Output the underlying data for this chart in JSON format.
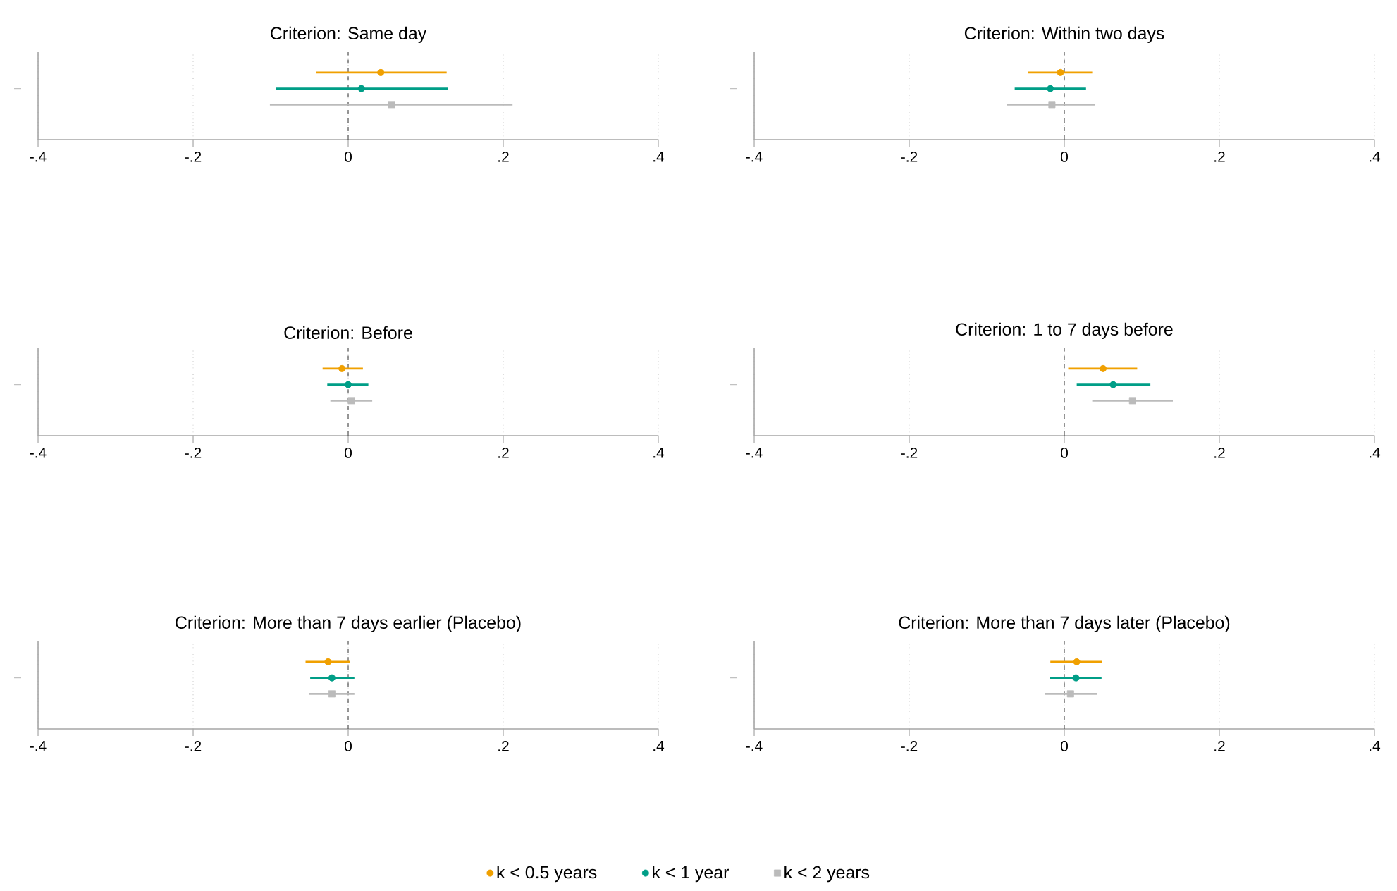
{
  "chart_data": [
    {
      "type": "scatter",
      "orientation": "horizontal",
      "title": "Criterion: Same day",
      "categories": [
        null
      ],
      "xlim": [
        -0.4,
        0.4
      ],
      "xticks": [
        {
          "value": -0.4,
          "label": "-.4"
        },
        {
          "value": -0.2,
          "label": "-.2"
        },
        0,
        {
          "value": 0.2,
          "label": ".2"
        },
        {
          "value": 0.4,
          "label": ".4"
        }
      ],
      "grid": "x",
      "tick_labels": "x",
      "ref_lines": [
        {
          "axis": "x",
          "value": 0,
          "color": "#555555",
          "line_style": "dashed"
        }
      ],
      "series": [
        {
          "color": "#f0a000",
          "marker": "circle",
          "values": [
            0.042
          ],
          "errors": [
            [
              -0.041,
              0.127
            ]
          ]
        },
        {
          "color": "#009e87",
          "marker": "circle",
          "values": [
            0.017
          ],
          "errors": [
            [
              -0.093,
              0.129
            ]
          ]
        },
        {
          "color": "#bbbbbb",
          "marker": "square",
          "values": [
            0.056
          ],
          "errors": [
            [
              -0.101,
              0.212
            ]
          ]
        }
      ]
    },
    {
      "type": "scatter",
      "orientation": "horizontal",
      "title": "Criterion: Within two days",
      "categories": [
        null
      ],
      "xlim": [
        -0.4,
        0.4
      ],
      "xticks": [
        {
          "value": -0.4,
          "label": "-.4"
        },
        {
          "value": -0.2,
          "label": "-.2"
        },
        0,
        {
          "value": 0.2,
          "label": ".2"
        },
        {
          "value": 0.4,
          "label": ".4"
        }
      ],
      "grid": "x",
      "tick_labels": "x",
      "ref_lines": [
        {
          "axis": "x",
          "value": 0,
          "color": "#555555",
          "line_style": "dashed"
        }
      ],
      "series": [
        {
          "color": "#f0a000",
          "marker": "circle",
          "values": [
            -0.005
          ],
          "errors": [
            [
              -0.047,
              0.036
            ]
          ]
        },
        {
          "color": "#009e87",
          "marker": "circle",
          "values": [
            -0.018
          ],
          "errors": [
            [
              -0.064,
              0.028
            ]
          ]
        },
        {
          "color": "#bbbbbb",
          "marker": "square",
          "values": [
            -0.016
          ],
          "errors": [
            [
              -0.074,
              0.04
            ]
          ]
        }
      ]
    },
    {
      "type": "scatter",
      "orientation": "horizontal",
      "title": "Criterion: Before",
      "categories": [
        null
      ],
      "xlim": [
        -0.4,
        0.4
      ],
      "xticks": [
        {
          "value": -0.4,
          "label": "-.4"
        },
        {
          "value": -0.2,
          "label": "-.2"
        },
        0,
        {
          "value": 0.2,
          "label": ".2"
        },
        {
          "value": 0.4,
          "label": ".4"
        }
      ],
      "grid": "x",
      "tick_labels": "x",
      "ref_lines": [
        {
          "axis": "x",
          "value": 0,
          "color": "#555555",
          "line_style": "dashed"
        }
      ],
      "series": [
        {
          "color": "#f0a000",
          "marker": "circle",
          "values": [
            -0.008
          ],
          "errors": [
            [
              -0.033,
              0.019
            ]
          ]
        },
        {
          "color": "#009e87",
          "marker": "circle",
          "values": [
            0.0
          ],
          "errors": [
            [
              -0.027,
              0.026
            ]
          ]
        },
        {
          "color": "#bbbbbb",
          "marker": "square",
          "values": [
            0.004
          ],
          "errors": [
            [
              -0.023,
              0.031
            ]
          ]
        }
      ]
    },
    {
      "type": "scatter",
      "orientation": "horizontal",
      "title": "Criterion: 1 to 7 days before",
      "categories": [
        null
      ],
      "xlim": [
        -0.4,
        0.4
      ],
      "xticks": [
        {
          "value": -0.4,
          "label": "-.4"
        },
        {
          "value": -0.2,
          "label": "-.2"
        },
        0,
        {
          "value": 0.2,
          "label": ".2"
        },
        {
          "value": 0.4,
          "label": ".4"
        }
      ],
      "grid": "x",
      "tick_labels": "x",
      "ref_lines": [
        {
          "axis": "x",
          "value": 0,
          "color": "#555555",
          "line_style": "dashed"
        }
      ],
      "series": [
        {
          "color": "#f0a000",
          "marker": "circle",
          "values": [
            0.05
          ],
          "errors": [
            [
              0.005,
              0.094
            ]
          ]
        },
        {
          "color": "#009e87",
          "marker": "circle",
          "values": [
            0.063
          ],
          "errors": [
            [
              0.016,
              0.111
            ]
          ]
        },
        {
          "color": "#bbbbbb",
          "marker": "square",
          "values": [
            0.088
          ],
          "errors": [
            [
              0.036,
              0.14
            ]
          ]
        }
      ]
    },
    {
      "type": "scatter",
      "orientation": "horizontal",
      "title": "Criterion: More than 7 days earlier (Placebo)",
      "categories": [
        null
      ],
      "xlim": [
        -0.4,
        0.4
      ],
      "xticks": [
        {
          "value": -0.4,
          "label": "-.4"
        },
        {
          "value": -0.2,
          "label": "-.2"
        },
        0,
        {
          "value": 0.2,
          "label": ".2"
        },
        {
          "value": 0.4,
          "label": ".4"
        }
      ],
      "grid": "x",
      "tick_labels": "x",
      "ref_lines": [
        {
          "axis": "x",
          "value": 0,
          "color": "#555555",
          "line_style": "dashed"
        }
      ],
      "series": [
        {
          "color": "#f0a000",
          "marker": "circle",
          "values": [
            -0.026
          ],
          "errors": [
            [
              -0.055,
              0.002
            ]
          ]
        },
        {
          "color": "#009e87",
          "marker": "circle",
          "values": [
            -0.021
          ],
          "errors": [
            [
              -0.049,
              0.008
            ]
          ]
        },
        {
          "color": "#bbbbbb",
          "marker": "square",
          "values": [
            -0.021
          ],
          "errors": [
            [
              -0.05,
              0.008
            ]
          ]
        }
      ]
    },
    {
      "type": "scatter",
      "orientation": "horizontal",
      "title": "Criterion: More than 7 days later (Placebo)",
      "categories": [
        null
      ],
      "xlim": [
        -0.4,
        0.4
      ],
      "xticks": [
        {
          "value": -0.4,
          "label": "-.4"
        },
        {
          "value": -0.2,
          "label": "-.2"
        },
        0,
        {
          "value": 0.2,
          "label": ".2"
        },
        {
          "value": 0.4,
          "label": ".4"
        }
      ],
      "grid": "x",
      "tick_labels": "x",
      "legend": "bottom",
      "ref_lines": [
        {
          "axis": "x",
          "value": 0,
          "color": "#555555",
          "line_style": "dashed"
        }
      ],
      "series": [
        {
          "name": "k < 0.5 years",
          "color": "#f0a000",
          "marker": "circle",
          "values": [
            0.016
          ],
          "errors": [
            [
              -0.018,
              0.049
            ]
          ]
        },
        {
          "name": "k < 1 year",
          "color": "#009e87",
          "marker": "circle",
          "values": [
            0.015
          ],
          "errors": [
            [
              -0.019,
              0.048
            ]
          ]
        },
        {
          "name": "k < 2 years",
          "color": "#bbbbbb",
          "marker": "square",
          "values": [
            0.008
          ],
          "errors": [
            [
              -0.025,
              0.042
            ]
          ]
        }
      ]
    }
  ]
}
